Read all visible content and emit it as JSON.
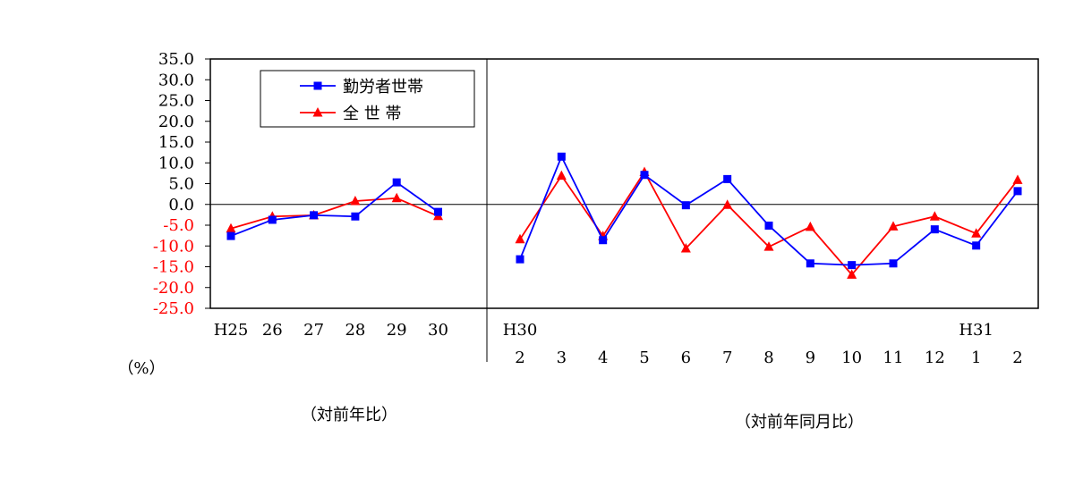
{
  "chart_data": {
    "type": "line",
    "unit_label": "（%）",
    "yticks": [
      "35.0",
      "30.0",
      "25.0",
      "20.0",
      "15.0",
      "10.0",
      "5.0",
      "0.0",
      "-5.0",
      "-10.0",
      "-15.0",
      "-20.0",
      "-25.0"
    ],
    "ylim": [
      -25,
      35
    ],
    "annual": {
      "categories": [
        "H25",
        "26",
        "27",
        "28",
        "29",
        "30"
      ],
      "caption": "（対前年比）",
      "series": [
        {
          "name": "勤労者世帯",
          "color": "#0000ff",
          "marker": "square",
          "values": [
            -7.6,
            -3.7,
            -2.6,
            -2.9,
            5.3,
            -1.8
          ]
        },
        {
          "name": "全 世 帯",
          "color": "#ff0000",
          "marker": "triangle",
          "values": [
            -5.8,
            -2.9,
            -2.6,
            0.8,
            1.5,
            -2.8
          ]
        }
      ]
    },
    "monthly": {
      "categories": [
        "2",
        "3",
        "4",
        "5",
        "6",
        "7",
        "8",
        "9",
        "10",
        "11",
        "12",
        "1",
        "2"
      ],
      "era_labels": [
        {
          "label": "H30",
          "index": 0
        },
        {
          "label": "H31",
          "index": 11
        }
      ],
      "caption": "（対前年同月比）",
      "series": [
        {
          "name": "勤労者世帯",
          "color": "#0000ff",
          "marker": "square",
          "values": [
            -13.2,
            11.5,
            -8.6,
            7.1,
            -0.2,
            6.1,
            -5.1,
            -14.2,
            -14.6,
            -14.2,
            -6.0,
            -9.9,
            3.2
          ]
        },
        {
          "name": "全 世 帯",
          "color": "#ff0000",
          "marker": "triangle",
          "values": [
            -8.4,
            6.9,
            -7.6,
            7.8,
            -10.6,
            -0.1,
            -10.2,
            -5.4,
            -16.9,
            -5.3,
            -2.9,
            -7.0,
            5.9
          ]
        }
      ]
    },
    "legend": {
      "placement": "top-left",
      "entries": [
        {
          "label": "勤労者世帯",
          "color": "#0000ff",
          "marker": "square"
        },
        {
          "label": "全 世 帯",
          "color": "#ff0000",
          "marker": "triangle"
        }
      ]
    },
    "positive_tick_color": "#000000",
    "negative_tick_color": "#ff0000"
  }
}
